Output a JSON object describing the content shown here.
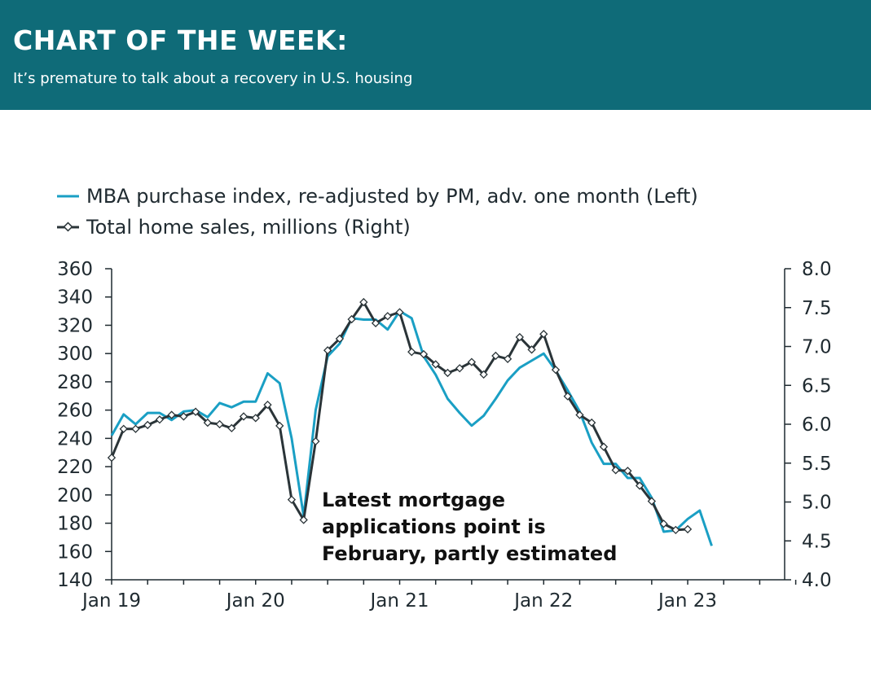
{
  "header": {
    "title": "CHART OF THE WEEK:",
    "subtitle": "It’s premature to talk about a recovery in U.S. housing"
  },
  "colors": {
    "header_bg": "#0f6b78",
    "mba_line": "#1a9fc4",
    "sales_line": "#2a3438",
    "axis": "#1f2a30"
  },
  "chart_data": {
    "type": "line",
    "x_unit": "month",
    "x_tick_labels": [
      "Jan 19",
      "Jan 20",
      "Jan 21",
      "Jan 22",
      "Jan 23"
    ],
    "y_left_ticks": [
      "360",
      "340",
      "320",
      "300",
      "280",
      "260",
      "240",
      "220",
      "200",
      "180",
      "160",
      "140"
    ],
    "y_right_ticks": [
      "8.0",
      "7.5",
      "7.0",
      "6.5",
      "6.0",
      "5.5",
      "5.0",
      "4.5",
      "4.0"
    ],
    "ylim_left": [
      140,
      360
    ],
    "ylim_right": [
      4.0,
      8.0
    ],
    "xlim": [
      "2019-01",
      "2023-11"
    ],
    "grid": false,
    "legend_position": "top-left",
    "annotation": [
      "Latest mortgage",
      "applications point is",
      "February, partly estimated"
    ],
    "series": [
      {
        "name": "MBA purchase index, re-adjusted by PM, adv. one month (Left)",
        "axis": "left",
        "start": "2019-01",
        "values": [
          242,
          257,
          250,
          258,
          258,
          253,
          259,
          260,
          255,
          265,
          262,
          266,
          266,
          286,
          279,
          240,
          185,
          260,
          298,
          307,
          325,
          324,
          324,
          317,
          330,
          325,
          298,
          285,
          268,
          258,
          249,
          256,
          268,
          281,
          290,
          295,
          300,
          288,
          274,
          259,
          237,
          222,
          222,
          212,
          212,
          198,
          174,
          175,
          183,
          189,
          164
        ]
      },
      {
        "name": "Total home sales, millions (Right)",
        "axis": "right",
        "start": "2019-01",
        "values": [
          5.57,
          5.94,
          5.94,
          5.99,
          6.06,
          6.12,
          6.1,
          6.16,
          6.02,
          6.0,
          5.95,
          6.1,
          6.08,
          6.25,
          5.98,
          5.03,
          4.77,
          5.78,
          6.95,
          7.1,
          7.35,
          7.57,
          7.3,
          7.39,
          7.44,
          6.93,
          6.9,
          6.77,
          6.66,
          6.72,
          6.8,
          6.64,
          6.88,
          6.84,
          7.12,
          6.96,
          7.16,
          6.7,
          6.36,
          6.12,
          6.02,
          5.71,
          5.41,
          5.4,
          5.21,
          5.01,
          4.72,
          4.64,
          4.65
        ]
      }
    ]
  }
}
